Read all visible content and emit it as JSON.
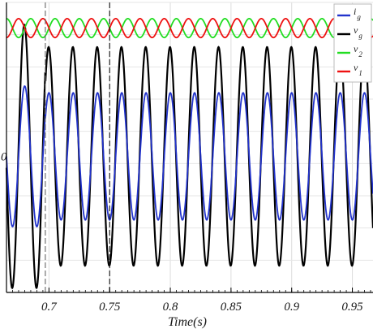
{
  "chart_data": {
    "type": "line",
    "xlabel": "Time(s)",
    "ylabel": "",
    "xlim": [
      0.665,
      0.967
    ],
    "ylim": [
      -1.22,
      1.38
    ],
    "x_ticks": [
      0.7,
      0.75,
      0.8,
      0.85,
      0.9,
      0.95
    ],
    "x_tick_labels": [
      "0.7",
      "0.75",
      "0.8",
      "0.85",
      "0.9",
      "0.95"
    ],
    "y_tick_labels": [
      "0"
    ],
    "grid": true,
    "legend_position": "top-right",
    "vertical_markers": [
      {
        "x": 0.697,
        "style": "dashed",
        "color": "#666666"
      },
      {
        "x": 0.75,
        "style": "dashed",
        "color": "#111111"
      }
    ],
    "frequency_hz": 50,
    "series": [
      {
        "name": "i",
        "subscript": "g",
        "color": "#2233cc",
        "waveform": "sine",
        "amplitude_before": 0.63,
        "amplitude_after": 0.57,
        "offset": 0.0,
        "phase_deg": 90
      },
      {
        "name": "v",
        "subscript": "g",
        "color": "#000000",
        "waveform": "sine",
        "amplitude_before": 1.18,
        "amplitude_after": 0.98,
        "offset": 0.0,
        "phase_deg": 95
      },
      {
        "name": "v",
        "subscript": "2",
        "color": "#22dd22",
        "waveform": "sine",
        "amplitude_before": 0.085,
        "amplitude_after": 0.085,
        "offset": 1.15,
        "phase_deg": 0
      },
      {
        "name": "v",
        "subscript": "1",
        "color": "#ee1111",
        "waveform": "sine",
        "amplitude_before": 0.085,
        "amplitude_after": 0.085,
        "offset": 1.15,
        "phase_deg": 180
      }
    ]
  }
}
